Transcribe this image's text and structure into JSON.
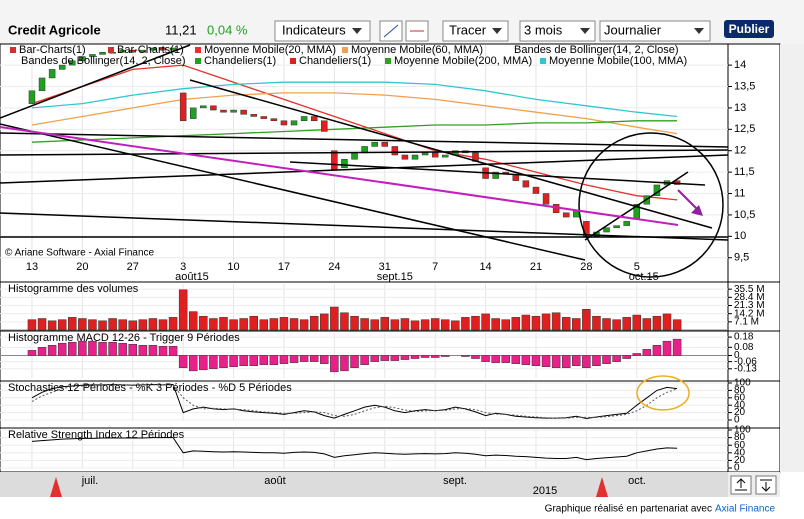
{
  "toolbar": {
    "name": "Credit Agricole",
    "price": "11,21",
    "change": "0,04 %",
    "indicators": "Indicateurs",
    "draw": "Tracer",
    "period": "3 mois",
    "interval": "Journalier",
    "publish": "Publier"
  },
  "legend": [
    {
      "name": "Bar-Charts(1)",
      "color": "#d03030"
    },
    {
      "name": "Bar-Charts(1)",
      "color": "#d03030"
    },
    {
      "name": "Moyenne Mobile(20, MMA)",
      "color": "#e8302a"
    },
    {
      "name": "Moyenne Mobile(60, MMA)",
      "color": "#f0a050"
    },
    {
      "name": "Bandes de Bollinger(14, 2, Close)"
    },
    {
      "name": "Bandes de Bollinger(14, 2, Close)"
    },
    {
      "name": "Chandeliers(1)",
      "color": "#20a020"
    },
    {
      "name": "Chandeliers(1)",
      "color": "#e02020"
    },
    {
      "name": "Moyenne Mobile(200, MMA)",
      "color": "#30a020"
    },
    {
      "name": "Moyenne Mobile(100, MMA)",
      "color": "#30c8d0"
    }
  ],
  "watermark": "© Ariane Software - Axial Finance",
  "footer": {
    "text": "Graphique réalisé en partenariat avec",
    "brand": "Axial Finance"
  },
  "navigator": {
    "months": [
      "juil.",
      "août",
      "sept.",
      "oct."
    ],
    "year": "2015"
  },
  "chart_data": [
    {
      "type": "candlestick",
      "xlim": [
        -3.17,
        69.05
      ],
      "ylim": [
        9.4,
        14.47
      ],
      "yticks": [
        14,
        {
          "value": 13.5,
          "label": "13,5"
        },
        13,
        {
          "value": 12.5,
          "label": "12,5"
        },
        12,
        {
          "value": 11.5,
          "label": "11,5"
        },
        11,
        {
          "value": 10.5,
          "label": "10,5"
        },
        10,
        {
          "value": 9.5,
          "label": "9,5"
        }
      ],
      "xticks": [
        {
          "value": 0,
          "label": "13"
        },
        {
          "value": 5,
          "label": "20"
        },
        {
          "value": 10,
          "label": "27"
        },
        {
          "value": 15,
          "label": "3"
        },
        {
          "value": 20,
          "label": "10"
        },
        {
          "value": 25,
          "label": "17"
        },
        {
          "value": 30,
          "label": "24"
        },
        {
          "value": 35,
          "label": "31"
        },
        {
          "value": 40,
          "label": "7"
        },
        {
          "value": 45,
          "label": "14"
        },
        {
          "value": 50,
          "label": "21"
        },
        {
          "value": 55,
          "label": "28"
        },
        {
          "value": 60,
          "label": "5"
        }
      ],
      "month_ticks": [
        {
          "value": 15,
          "label": "août15"
        },
        {
          "value": 35,
          "label": "sept.15"
        },
        {
          "value": 60,
          "label": "oct.15"
        }
      ],
      "open": [
        13.1,
        13.4,
        13.7,
        13.9,
        14.0,
        14.1,
        14.2,
        14.25,
        14.3,
        14.3,
        14.35,
        14.3,
        14.35,
        14.4,
        14.35,
        13.35,
        12.75,
        13.0,
        13.05,
        12.95,
        12.9,
        12.95,
        12.85,
        12.8,
        12.75,
        12.7,
        12.6,
        12.7,
        12.8,
        12.7,
        12.0,
        11.6,
        11.8,
        11.95,
        12.1,
        12.2,
        12.1,
        11.9,
        11.8,
        11.9,
        11.95,
        11.85,
        11.9,
        12.0,
        11.95,
        11.6,
        11.35,
        11.5,
        11.45,
        11.3,
        11.15,
        11.0,
        10.75,
        10.55,
        10.45,
        10.35,
        10.0,
        10.1,
        10.2,
        10.25,
        10.4,
        10.75,
        10.95,
        11.2,
        11.3
      ],
      "close": [
        13.4,
        13.7,
        13.9,
        14.0,
        14.1,
        14.2,
        14.25,
        14.3,
        14.3,
        14.35,
        14.3,
        14.35,
        14.4,
        14.35,
        14.4,
        12.7,
        13.0,
        13.05,
        12.95,
        12.9,
        12.95,
        12.85,
        12.8,
        12.75,
        12.7,
        12.6,
        12.7,
        12.8,
        12.7,
        12.45,
        11.55,
        11.8,
        11.95,
        12.1,
        12.2,
        12.1,
        11.9,
        11.8,
        11.9,
        11.95,
        11.85,
        11.9,
        12.0,
        11.95,
        11.75,
        11.35,
        11.5,
        11.45,
        11.3,
        11.15,
        11.0,
        10.75,
        10.55,
        10.45,
        10.6,
        10.0,
        10.1,
        10.2,
        10.25,
        10.35,
        10.75,
        10.95,
        11.2,
        11.3,
        11.21
      ],
      "up_color": "#20a020",
      "down_color": "#e02020",
      "ma_x": [
        0,
        5,
        10,
        15,
        20,
        25,
        30,
        35,
        40,
        45,
        50,
        55,
        60,
        64
      ],
      "series": [
        {
          "name": "Moyenne Mobile(20, MMA)",
          "color": "#e8302a",
          "values": [
            13.1,
            13.5,
            13.9,
            14.0,
            13.6,
            13.2,
            12.8,
            12.4,
            12.0,
            11.8,
            11.5,
            11.2,
            10.95,
            10.85
          ]
        },
        {
          "name": "Moyenne Mobile(60, MMA)",
          "color": "#f0a050",
          "values": [
            12.6,
            12.8,
            13.0,
            13.2,
            13.3,
            13.35,
            13.35,
            13.3,
            13.2,
            13.05,
            12.9,
            12.75,
            12.55,
            12.4
          ]
        },
        {
          "name": "Moyenne Mobile(100, MMA)",
          "color": "#30c8d0",
          "values": [
            13.0,
            13.1,
            13.3,
            13.45,
            13.55,
            13.6,
            13.6,
            13.6,
            13.55,
            13.4,
            13.2,
            13.05,
            12.9,
            12.8
          ]
        },
        {
          "name": "Moyenne Mobile(200, MMA)",
          "color": "#30a020",
          "values": [
            12.2,
            12.25,
            12.3,
            12.35,
            12.4,
            12.45,
            12.5,
            12.55,
            12.6,
            12.6,
            12.65,
            12.65,
            12.7,
            12.7
          ]
        }
      ]
    },
    {
      "type": "bar",
      "title": "Histogramme des volumes",
      "ylim": [
        0,
        40
      ],
      "color": "#e02020",
      "yticks": [
        {
          "value": 35.5,
          "label": "35.5 M"
        },
        {
          "value": 28.4,
          "label": "28.4 M"
        },
        {
          "value": 21.3,
          "label": "21.3 M"
        },
        {
          "value": 14.2,
          "label": "14.2 M"
        },
        {
          "value": 7.1,
          "label": "7.1 M"
        }
      ],
      "values": [
        9,
        10,
        8,
        9,
        11,
        10,
        9,
        8,
        10,
        9,
        8,
        9,
        10,
        9,
        11,
        35,
        16,
        12,
        10,
        11,
        9,
        10,
        12,
        9,
        10,
        11,
        10,
        9,
        12,
        14,
        20,
        15,
        12,
        10,
        9,
        11,
        9,
        10,
        8,
        9,
        10,
        9,
        8,
        11,
        12,
        14,
        10,
        9,
        11,
        13,
        12,
        14,
        15,
        11,
        10,
        18,
        12,
        10,
        9,
        11,
        13,
        10,
        12,
        14,
        9
      ]
    },
    {
      "type": "bar",
      "title": "Histogramme MACD 12-26 - Trigger 9 Périodes",
      "ylim": [
        -0.22,
        0.22
      ],
      "color": "#e8208a",
      "yticks": [
        0.18,
        0.08,
        0,
        -0.06,
        -0.13
      ],
      "values": [
        0.05,
        0.08,
        0.1,
        0.12,
        0.13,
        0.14,
        0.14,
        0.13,
        0.13,
        0.12,
        0.11,
        0.1,
        0.1,
        0.09,
        0.09,
        -0.12,
        -0.15,
        -0.14,
        -0.13,
        -0.12,
        -0.11,
        -0.1,
        -0.1,
        -0.09,
        -0.09,
        -0.08,
        -0.07,
        -0.06,
        -0.06,
        -0.08,
        -0.16,
        -0.15,
        -0.12,
        -0.09,
        -0.06,
        -0.05,
        -0.05,
        -0.04,
        -0.03,
        -0.02,
        -0.02,
        -0.01,
        0,
        -0.01,
        -0.03,
        -0.06,
        -0.07,
        -0.07,
        -0.08,
        -0.09,
        -0.1,
        -0.11,
        -0.12,
        -0.12,
        -0.1,
        -0.12,
        -0.1,
        -0.08,
        -0.06,
        -0.03,
        0.02,
        0.06,
        0.1,
        0.14,
        0.16
      ]
    },
    {
      "type": "line",
      "title": "Stochastics 12 Périodes - %K 3 Périodes - %D 5 Périodes",
      "ylim": [
        0,
        100
      ],
      "yticks": [
        100,
        80,
        60,
        40,
        20,
        0
      ],
      "series": [
        {
          "name": "%K",
          "color": "#000000",
          "values": [
            60,
            75,
            85,
            90,
            92,
            94,
            95,
            95,
            96,
            95,
            94,
            95,
            96,
            95,
            96,
            20,
            30,
            35,
            30,
            28,
            30,
            25,
            22,
            20,
            18,
            15,
            20,
            25,
            22,
            12,
            5,
            15,
            25,
            35,
            40,
            35,
            25,
            20,
            25,
            28,
            25,
            28,
            35,
            30,
            22,
            12,
            18,
            15,
            10,
            8,
            6,
            5,
            5,
            6,
            10,
            4,
            8,
            12,
            15,
            18,
            40,
            60,
            80,
            88,
            85
          ]
        },
        {
          "name": "%D",
          "color": "#555555",
          "values": [
            50,
            65,
            75,
            85,
            90,
            92,
            93,
            94,
            95,
            95,
            95,
            95,
            95,
            95,
            95,
            60,
            40,
            30,
            32,
            30,
            29,
            28,
            25,
            22,
            20,
            18,
            18,
            20,
            22,
            20,
            12,
            10,
            15,
            25,
            33,
            37,
            33,
            27,
            23,
            25,
            26,
            26,
            30,
            31,
            28,
            20,
            16,
            15,
            13,
            10,
            8,
            6,
            5,
            5,
            7,
            7,
            7,
            9,
            12,
            15,
            25,
            40,
            60,
            75,
            84
          ]
        }
      ]
    },
    {
      "type": "line",
      "title": "Relative Strength Index 12 Périodes",
      "ylim": [
        0,
        100
      ],
      "yticks": [
        100,
        80,
        60,
        40,
        20,
        0
      ],
      "series": [
        {
          "name": "RSI",
          "color": "#000000",
          "values": [
            70,
            72,
            74,
            76,
            77,
            78,
            78,
            79,
            79,
            79,
            79,
            79,
            80,
            80,
            80,
            40,
            45,
            44,
            43,
            42,
            43,
            42,
            41,
            40,
            40,
            39,
            41,
            42,
            41,
            37,
            28,
            32,
            35,
            38,
            40,
            39,
            37,
            36,
            37,
            38,
            37,
            38,
            40,
            39,
            36,
            32,
            34,
            33,
            31,
            30,
            28,
            26,
            25,
            25,
            28,
            22,
            25,
            27,
            29,
            31,
            40,
            45,
            50,
            53,
            52
          ]
        }
      ]
    }
  ]
}
